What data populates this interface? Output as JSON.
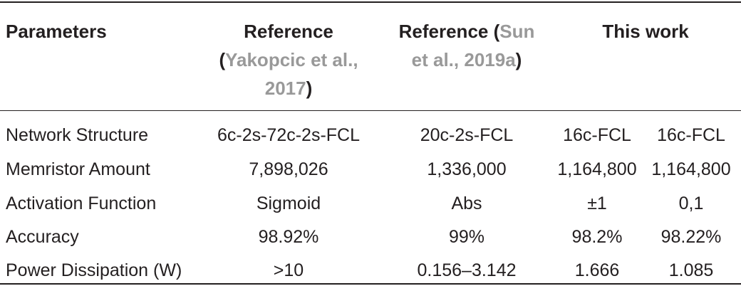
{
  "header": {
    "parameters": "Parameters",
    "ref1": {
      "pre": "Reference",
      "open": "(",
      "link": "Yakopcic et al., 2017",
      "close": ")"
    },
    "ref2": {
      "pre": "Reference (",
      "link": "Sun et al., 2019a",
      "close": ")"
    },
    "this_work": "This work"
  },
  "rows": [
    {
      "param": "Network Structure",
      "ref1": "6c-2s-72c-2s-FCL",
      "ref2": "20c-2s-FCL",
      "tw1": "16c-FCL",
      "tw2": "16c-FCL"
    },
    {
      "param": "Memristor Amount",
      "ref1": "7,898,026",
      "ref2": "1,336,000",
      "tw1": "1,164,800",
      "tw2": "1,164,800"
    },
    {
      "param": "Activation Function",
      "ref1": "Sigmoid",
      "ref2": "Abs",
      "tw1": "±1",
      "tw2": "0,1"
    },
    {
      "param": "Accuracy",
      "ref1": "98.92%",
      "ref2": "99%",
      "tw1": "98.2%",
      "tw2": "98.22%"
    },
    {
      "param": "Power Dissipation (W)",
      "ref1": ">10",
      "ref2": "0.156–3.142",
      "tw1": "1.666",
      "tw2": "1.085"
    }
  ]
}
